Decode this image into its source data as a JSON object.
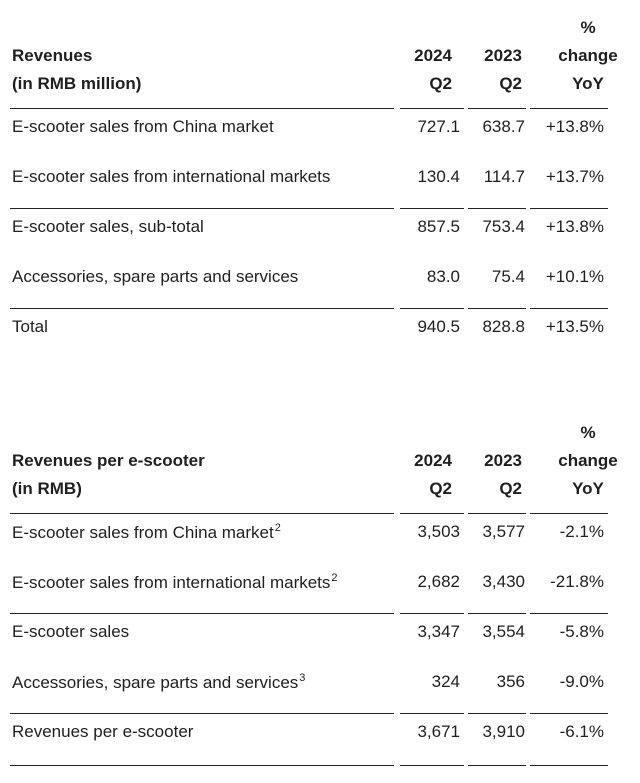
{
  "table1": {
    "title_line1": "Revenues",
    "title_line2": "(in RMB million)",
    "col_a": [
      "2024",
      "Q2"
    ],
    "col_b": [
      "2023",
      "Q2"
    ],
    "col_c": [
      "%",
      "change",
      "YoY"
    ],
    "rows": [
      {
        "label": "E-scooter sales from China market",
        "sup": "",
        "a": "727.1",
        "b": "638.7",
        "c": "+13.8%"
      },
      {
        "label": "E-scooter sales from international markets",
        "sup": "",
        "a": "130.4",
        "b": "114.7",
        "c": "+13.7%"
      },
      {
        "label": "E-scooter sales, sub-total",
        "sup": "",
        "a": "857.5",
        "b": "753.4",
        "c": "+13.8%"
      },
      {
        "label": "Accessories, spare parts and services",
        "sup": "",
        "a": "83.0",
        "b": "75.4",
        "c": "+10.1%"
      },
      {
        "label": "Total",
        "sup": "",
        "a": "940.5",
        "b": "828.8",
        "c": "+13.5%"
      }
    ]
  },
  "table2": {
    "title_line1": "Revenues per e-scooter",
    "title_line2": "(in RMB)",
    "col_a": [
      "2024",
      "Q2"
    ],
    "col_b": [
      "2023",
      "Q2"
    ],
    "col_c": [
      "%",
      "change",
      "YoY"
    ],
    "rows": [
      {
        "label": "E-scooter sales from China market",
        "sup": "2",
        "a": "3,503",
        "b": "3,577",
        "c": "-2.1%"
      },
      {
        "label": "E-scooter sales from international markets",
        "sup": "2",
        "a": "2,682",
        "b": "3,430",
        "c": "-21.8%"
      },
      {
        "label": "E-scooter sales",
        "sup": "",
        "a": "3,347",
        "b": "3,554",
        "c": "-5.8%"
      },
      {
        "label": "Accessories, spare parts and services",
        "sup": "3",
        "a": "324",
        "b": "356",
        "c": "-9.0%"
      },
      {
        "label": "Revenues per e-scooter",
        "sup": "",
        "a": "3,671",
        "b": "3,910",
        "c": "-6.1%"
      }
    ]
  }
}
